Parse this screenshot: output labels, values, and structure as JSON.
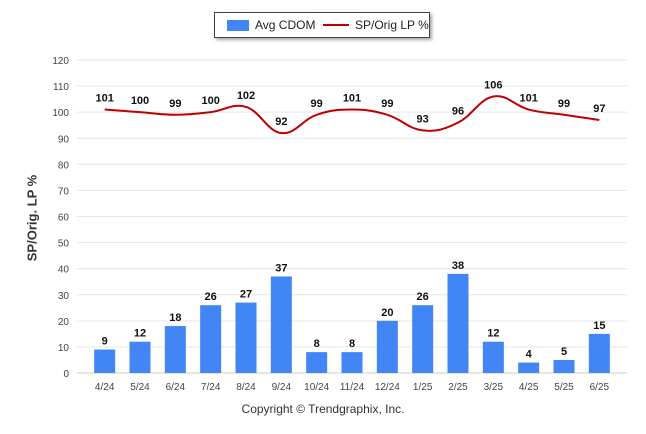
{
  "legend": {
    "bar_label": "Avg CDOM",
    "line_label": "SP/Orig LP %"
  },
  "copyright": "Copyright © Trendgraphix, Inc.",
  "chart_data": {
    "type": "bar+line",
    "categories": [
      "4/24",
      "5/24",
      "6/24",
      "7/24",
      "8/24",
      "9/24",
      "10/24",
      "11/24",
      "12/24",
      "1/25",
      "2/25",
      "3/25",
      "4/25",
      "5/25",
      "6/25"
    ],
    "series": [
      {
        "name": "Avg CDOM",
        "type": "bar",
        "color": "#4285f4",
        "values": [
          9,
          12,
          18,
          26,
          27,
          37,
          8,
          8,
          20,
          26,
          38,
          12,
          4,
          5,
          15
        ]
      },
      {
        "name": "SP/Orig LP %",
        "type": "line",
        "color": "#c00000",
        "values": [
          101,
          100,
          99,
          100,
          102,
          92,
          99,
          101,
          99,
          93,
          96,
          106,
          101,
          99,
          97
        ]
      }
    ],
    "ylabel": "SP/Orig. LP %",
    "ylim": [
      0,
      120
    ],
    "yticks": [
      0,
      10,
      20,
      30,
      40,
      50,
      60,
      70,
      80,
      90,
      100,
      110,
      120
    ],
    "grid": true,
    "legend_position": "top"
  }
}
